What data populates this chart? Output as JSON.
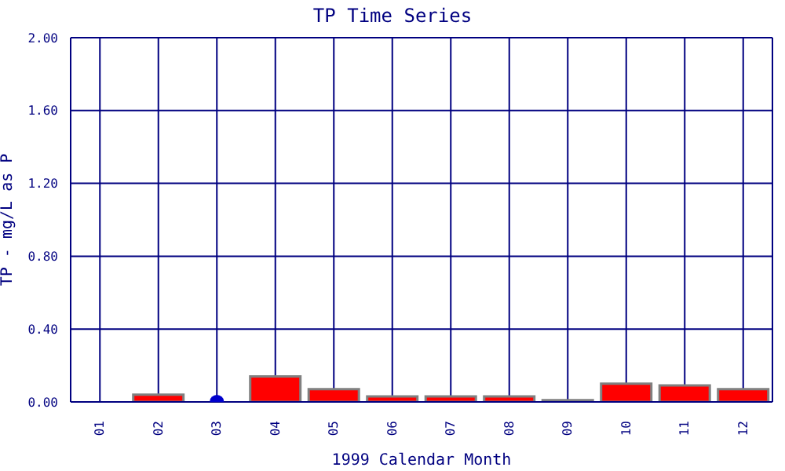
{
  "chart_data": {
    "type": "bar",
    "title": "TP Time Series",
    "xlabel": "1999 Calendar Month",
    "ylabel": "TP - mg/L as P",
    "categories": [
      "01",
      "02",
      "03",
      "04",
      "05",
      "06",
      "07",
      "08",
      "09",
      "10",
      "11",
      "12"
    ],
    "series": [
      {
        "color": "#ff0000",
        "values": [
          0,
          0.04,
          null,
          0.14,
          0.07,
          0.03,
          0.03,
          0.03,
          0.01,
          0.1,
          0.09,
          0.07
        ]
      },
      {
        "type": "scatter",
        "color": "#0000cc",
        "values": [
          null,
          null,
          0,
          null,
          null,
          null,
          null,
          null,
          null,
          null,
          null,
          null
        ]
      }
    ],
    "ylim": [
      0,
      2
    ],
    "yticks": [
      {
        "value": 0,
        "label": "0.00"
      },
      {
        "value": 0.4,
        "label": "0.40"
      },
      {
        "value": 0.8,
        "label": "0.80"
      },
      {
        "value": 1.2,
        "label": "1.20"
      },
      {
        "value": 1.6,
        "label": "1.60"
      },
      {
        "value": 2,
        "label": "2.00"
      }
    ],
    "grid": true,
    "marker": "circle",
    "legend": false
  }
}
